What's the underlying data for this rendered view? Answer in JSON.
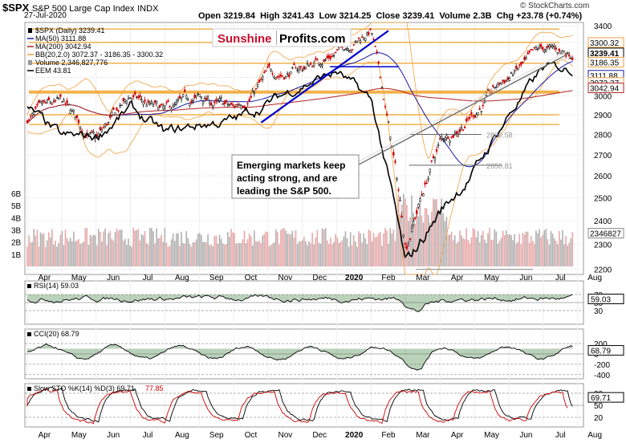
{
  "header": {
    "symbol": "$SPX",
    "name": "S&P 500 Large Cap Index",
    "exchange": "INDX",
    "date": "27-Jul-2020",
    "open_label": "Open",
    "open": "3219.84",
    "high_label": "High",
    "high": "3241.43",
    "low_label": "Low",
    "low": "3214.25",
    "close_label": "Close",
    "close": "3239.41",
    "volume_label": "Volume",
    "volume": "2.3B",
    "chg_label": "Chg",
    "chg": "+23.78 (+0.74%)",
    "copyright": "© StockCharts.com"
  },
  "colors": {
    "up": "#000000",
    "down": "#cc0000",
    "ma50": "#1a1aa8",
    "ma200": "#b22222",
    "bb": "#f0a040",
    "eem": "#000000",
    "vol_up": "#b0b0b0",
    "vol_down": "#e8a8a8",
    "trendline": "#0000cc",
    "support": "#f0a020",
    "rsi_fill": "#3a7a3a",
    "cci_neg": "#8b3a3a",
    "sto_k": "#000000",
    "sto_d": "#cc0000"
  },
  "logo": {
    "part1": "Sunshine",
    "part2": "Profits.com"
  },
  "annotation": {
    "lines": [
      "Emerging markets keep",
      "acting strong, and are",
      "leading the S&P 500."
    ]
  },
  "legend": [
    {
      "text": "$SPX (Daily) 3239.41",
      "color": "#000000",
      "icon": "candle-icon"
    },
    {
      "text": "MA(50) 3111.88",
      "color": "#1a1aa8",
      "icon": "line-icon"
    },
    {
      "text": "MA(200) 3042.94",
      "color": "#b22222",
      "icon": "line-icon"
    },
    {
      "text": "BB(20,2.0) 3072.37 - 3186.35 - 3300.32",
      "color": "#f0a040",
      "icon": "line-icon"
    },
    {
      "text": "Volume 2,346,827,776",
      "color": "#999999",
      "icon": "bar-icon"
    },
    {
      "text": "EEM 43.81",
      "color": "#000000",
      "icon": "line-icon"
    }
  ],
  "price_badges": [
    {
      "value": "3300.32",
      "y": 3300,
      "color": "#f0a040",
      "text_color": "#000000",
      "bold": false
    },
    {
      "value": "3239.41",
      "y": 3239,
      "color": "#000000",
      "text_color": "#000000",
      "bold": true
    },
    {
      "value": "3186.35",
      "y": 3186,
      "color": "#f0a040",
      "text_color": "#000000",
      "bold": false
    },
    {
      "value": "3111.88",
      "y": 3112,
      "color": "#1a1aa8",
      "text_color": "#000000",
      "bold": false
    },
    {
      "value": "3072.37",
      "y": 3072,
      "color": "#f0a040",
      "text_color": "#000000",
      "bold": false
    },
    {
      "value": "3042.94",
      "y": 3043,
      "color": "#b22222",
      "text_color": "#000000",
      "bold": false
    },
    {
      "value": "2346827",
      "y": 2346.8,
      "color": "#888888",
      "text_color": "#000000",
      "bold": false
    }
  ],
  "price_levels": [
    {
      "label": "2800.58",
      "y": 2800
    },
    {
      "label": "2650.81",
      "y": 2650
    }
  ],
  "panels": {
    "rsi": {
      "label": "RSI(14) 59.03",
      "badge": "59.03"
    },
    "cci": {
      "label": "CCI(20) 68.79",
      "badge": "68.79"
    },
    "sto": {
      "label": "Slow STO %K(14) %D(3) 69.71,",
      "label2": "77.85",
      "badge": "69.71",
      "badge2": "77.85"
    }
  },
  "chart_data": {
    "type": "candlestick",
    "title": "$SPX S&P 500 Large Cap Index INDX",
    "x_axis_labels": [
      "Apr",
      "May",
      "Jun",
      "Jul",
      "Aug",
      "Sep",
      "Oct",
      "Nov",
      "Dec",
      "2020",
      "Feb",
      "Mar",
      "Apr",
      "May",
      "Jun",
      "Jul",
      "Aug"
    ],
    "x_axis_bold": [
      "2020"
    ],
    "y_axis_ticks": [
      2200,
      2300,
      2400,
      2500,
      2600,
      2700,
      2800,
      2900,
      3000,
      3100,
      3200,
      3300,
      3400
    ],
    "y_axis_labels_shown": [
      "3400",
      "3200",
      "3000",
      "2900",
      "2800",
      "2700",
      "2600",
      "2500",
      "2400",
      "2300",
      "2200"
    ],
    "ylim": [
      2180,
      3420
    ],
    "volume_ticks": [
      "6B",
      "5B",
      "4B",
      "3B",
      "2B",
      "1B"
    ],
    "volume_tick_values": [
      6,
      5,
      4,
      3,
      2,
      1
    ],
    "volume_lim": [
      0,
      6.6
    ],
    "spx_monthly_path": [
      [
        "Apr 2019",
        2880
      ],
      [
        "May 2019",
        2940
      ],
      [
        "Jun 2019",
        2760
      ],
      [
        "Jul 2019",
        2990
      ],
      [
        "Aug 2019",
        2900
      ],
      [
        "Sep 2019",
        2980
      ],
      [
        "Oct 2019",
        2920
      ],
      [
        "Nov 2019",
        3110
      ],
      [
        "Dec 2019",
        3150
      ],
      [
        "Jan 2020",
        3250
      ],
      [
        "Feb 2020",
        3380
      ],
      [
        "Mar 2020",
        2300
      ],
      [
        "Apr 2020",
        2760
      ],
      [
        "May 2020",
        2920
      ],
      [
        "Jun 2020",
        3100
      ],
      [
        "Jul 2020",
        3240
      ]
    ],
    "eem_path": [
      [
        "Apr 2019",
        2930
      ],
      [
        "May 2019",
        2780
      ],
      [
        "Jun 2019",
        2790
      ],
      [
        "Jul 2019",
        2930
      ],
      [
        "Aug 2019",
        2800
      ],
      [
        "Sep 2019",
        2850
      ],
      [
        "Oct 2019",
        2870
      ],
      [
        "Nov 2019",
        2960
      ],
      [
        "Dec 2019",
        3060
      ],
      [
        "Jan 2020",
        3130
      ],
      [
        "Feb 2020",
        2970
      ],
      [
        "Mar 2020",
        2210
      ],
      [
        "Apr 2020",
        2440
      ],
      [
        "May 2020",
        2620
      ],
      [
        "Jun 2020",
        2900
      ],
      [
        "Jul 2020",
        3150
      ]
    ],
    "horizontal_lines": [
      2900,
      2850,
      3020,
      3300,
      3180,
      3380
    ],
    "rsi": {
      "ylim": [
        0,
        100
      ],
      "ticks": [
        70,
        50,
        30
      ],
      "last": 59.03
    },
    "cci": {
      "ylim": [
        -450,
        450
      ],
      "ticks": [
        200,
        0,
        -200,
        -400
      ],
      "last": 68.79
    },
    "sto": {
      "ylim": [
        0,
        100
      ],
      "ticks": [
        80,
        50,
        20
      ],
      "k_last": 69.71,
      "d_last": 77.85
    }
  }
}
